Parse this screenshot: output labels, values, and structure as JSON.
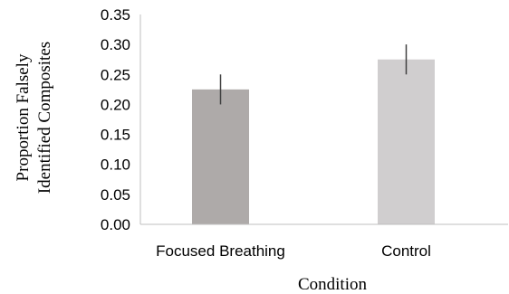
{
  "chart_data": {
    "type": "bar",
    "categories": [
      "Focused Breathing",
      "Control"
    ],
    "values": [
      0.225,
      0.275
    ],
    "error_bars": [
      0.025,
      0.025
    ],
    "bar_colors": [
      "#aeaaa9",
      "#d0cecf"
    ],
    "error_bar_color": "#404040",
    "axis_color": "#bfbfbf",
    "xlabel": "Condition",
    "ylabel_lines": [
      "Proportion Falsely",
      "Identified Composites"
    ],
    "ylim": [
      0,
      0.35
    ],
    "yticks": [
      0.0,
      0.05,
      0.1,
      0.15,
      0.2,
      0.25,
      0.3,
      0.35
    ],
    "ytick_labels": [
      "0.00",
      "0.05",
      "0.10",
      "0.15",
      "0.20",
      "0.25",
      "0.30",
      "0.35"
    ],
    "grid": false,
    "legend": "none"
  }
}
